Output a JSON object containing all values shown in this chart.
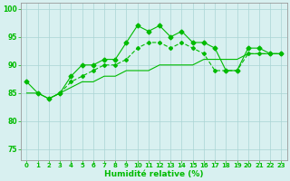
{
  "xlabel": "Humidité relative (%)",
  "bg_color": "#d8f0f0",
  "grid_color": "#aad4d4",
  "line_color": "#00bb00",
  "xlim": [
    -0.5,
    23.5
  ],
  "ylim": [
    73,
    101
  ],
  "yticks": [
    75,
    80,
    85,
    90,
    95,
    100
  ],
  "xticks": [
    0,
    1,
    2,
    3,
    4,
    5,
    6,
    7,
    8,
    9,
    10,
    11,
    12,
    13,
    14,
    15,
    16,
    17,
    18,
    19,
    20,
    21,
    22,
    23
  ],
  "series1_x": [
    0,
    1,
    2,
    3,
    4,
    5,
    6,
    7,
    8,
    9,
    10,
    11,
    12,
    13,
    14,
    15,
    16,
    17,
    18,
    19,
    20,
    21,
    22,
    23
  ],
  "series1_y": [
    87,
    85,
    84,
    85,
    88,
    90,
    90,
    91,
    91,
    94,
    97,
    96,
    97,
    95,
    96,
    94,
    94,
    93,
    89,
    89,
    93,
    93,
    92,
    92
  ],
  "series2_x": [
    2,
    3,
    4,
    5,
    6,
    7,
    8,
    9,
    10,
    11,
    12,
    13,
    14,
    15,
    16,
    17,
    18,
    19,
    20,
    21,
    22,
    23
  ],
  "series2_y": [
    84,
    85,
    87,
    88,
    89,
    90,
    90,
    91,
    93,
    94,
    94,
    93,
    94,
    93,
    92,
    89,
    89,
    89,
    92,
    92,
    92,
    92
  ],
  "series3_x": [
    0,
    1,
    2,
    3,
    4,
    5,
    6,
    7,
    8,
    9,
    10,
    11,
    12,
    13,
    14,
    15,
    16,
    17,
    18,
    19,
    20,
    21,
    22,
    23
  ],
  "series3_y": [
    85,
    85,
    84,
    85,
    86,
    87,
    87,
    88,
    88,
    89,
    89,
    89,
    90,
    90,
    90,
    90,
    91,
    91,
    91,
    91,
    92,
    92,
    92,
    92
  ]
}
